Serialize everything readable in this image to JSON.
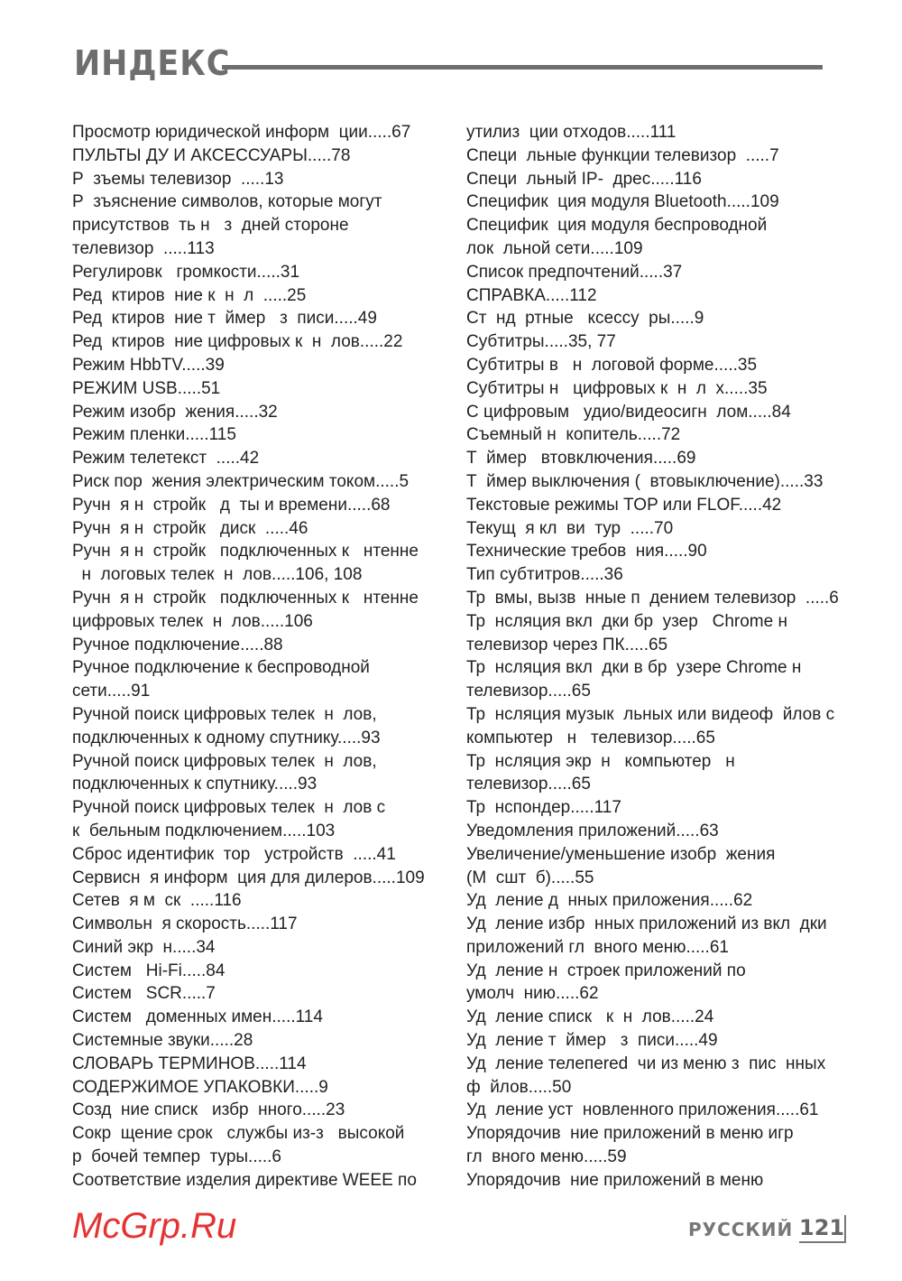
{
  "header": {
    "title": "ИНДЕКС"
  },
  "left_column": [
    "Просмотр юридической информ  ции.....67",
    "ПУЛЬТЫ ДУ И АКСЕССУАРЫ.....78",
    "Р  зъемы телевизор  .....13",
    "Р  зъяснение символов, которые могут",
    "присутствов  ть н   з  дней стороне",
    "телевизор  .....113",
    "Регулировк   громкости.....31",
    "Ред  ктиров  ние к  н  л  .....25",
    "Ред  ктиров  ние т  ймер   з  писи.....49",
    "Ред  ктиров  ние цифровых к  н  лов.....22",
    "Режим HbbTV.....39",
    "РЕЖИМ USB.....51",
    "Режим изобр  жения.....32",
    "Режим пленки.....115",
    "Режим телетекст  .....42",
    "Риск пор  жения электрическим током.....5",
    "Ручн  я н  стройк   д  ты и времени.....68",
    "Ручн  я н  стройк   диск  .....46",
    "Ручн  я н  стройк   подключенных к   нтенне",
    "  н  логовых телек  н  лов.....106, 108",
    "Ручн  я н  стройк   подключенных к   нтенне",
    "цифровых телек  н  лов.....106",
    "Ручное подключение.....88",
    "Ручное подключение к беспроводной",
    "сети.....91",
    "Ручной поиск цифровых телек  н  лов,",
    "подключенных к одному спутнику.....93",
    "Ручной поиск цифровых телек  н  лов,",
    "подключенных к спутнику.....93",
    "Ручной поиск цифровых телек  н  лов с",
    "к  бельным подключением.....103",
    "Сброс идентифик  тор   устройств  .....41",
    "Сервисн  я информ  ция для дилеров.....109",
    "Сетев  я м  ск  .....116",
    "Символьн  я скорость.....117",
    "Синий экр  н.....34",
    "Систем   Hi-Fi.....84",
    "Систем   SCR.....7",
    "Систем   доменных имен.....114",
    "Системные звуки.....28",
    "СЛОВАРЬ ТЕРМИНОВ.....114",
    "СОДЕРЖИМОЕ УПАКОВКИ.....9",
    "Созд  ние списк   избр  нного.....23",
    "Сокр  щение срок   службы из-з   высокой",
    "р  бочей темпер  туры.....6",
    "Соответствие изделия директиве WEEE по"
  ],
  "right_column": [
    "утилиз  ции отходов.....111",
    "Специ  льные функции телевизор  .....7",
    "Специ  льный IP-  дрес.....116",
    "Специфик  ция модуля Bluetooth.....109",
    "Специфик  ция модуля беспроводной",
    "лок  льной сети.....109",
    "Список предпочтений.....37",
    "СПРАВКА.....112",
    "Ст  нд  ртные   ксессу  ры.....9",
    "Субтитры.....35, 77",
    "Субтитры в   н  логовой форме.....35",
    "Субтитры н   цифровых к  н  л  х.....35",
    "С цифровым   удио/видеосигн  лом.....84",
    "Съемный н  копитель.....72",
    "Т  ймер   втовключения.....69",
    "Т  ймер выключения (  втовыключение).....33",
    "Текстовые режимы TOP или FLOF.....42",
    "Текущ  я кл  ви  тур  .....70",
    "Технические требов  ния.....90",
    "Тип субтитров.....36",
    "Тр  вмы, вызв  нные п  дением телевизор  .....6",
    "Тр  нсляция вкл  дки бр  узер   Chrome н",
    "телевизор через ПК.....65",
    "Тр  нсляция вкл  дки в бр  узере Chrome н",
    "телевизор.....65",
    "Тр  нсляция музык  льных или видеоф  йлов с",
    "компьютер   н   телевизор.....65",
    "Тр  нсляция экр  н   компьютер   н",
    "телевизор.....65",
    "Тр  нспондер.....117",
    "Уведомления приложений.....63",
    "Увеличение/уменьшение изобр  жения",
    "(М  сшт  б).....55",
    "Уд  ление д  нных приложения.....62",
    "Уд  ление избр  нных приложений из вкл  дки",
    "приложений гл  вного меню.....61",
    "Уд  ление н  строек приложений по",
    "умолч  нию.....62",
    "Уд  ление списк   к  н  лов.....24",
    "Уд  ление т  ймер   з  писи.....49",
    "Уд  ление телепered  чи из меню з  пис  нных",
    "ф  йлов.....50",
    "Уд  ление уст  новленного приложения.....61",
    "Упорядочив  ние приложений в меню игр",
    "гл  вного меню.....59",
    "Упорядочив  ние приложений в меню"
  ],
  "watermark": "McGrp.Ru",
  "footer": {
    "language": "РУССКИЙ",
    "page_number": "121"
  }
}
